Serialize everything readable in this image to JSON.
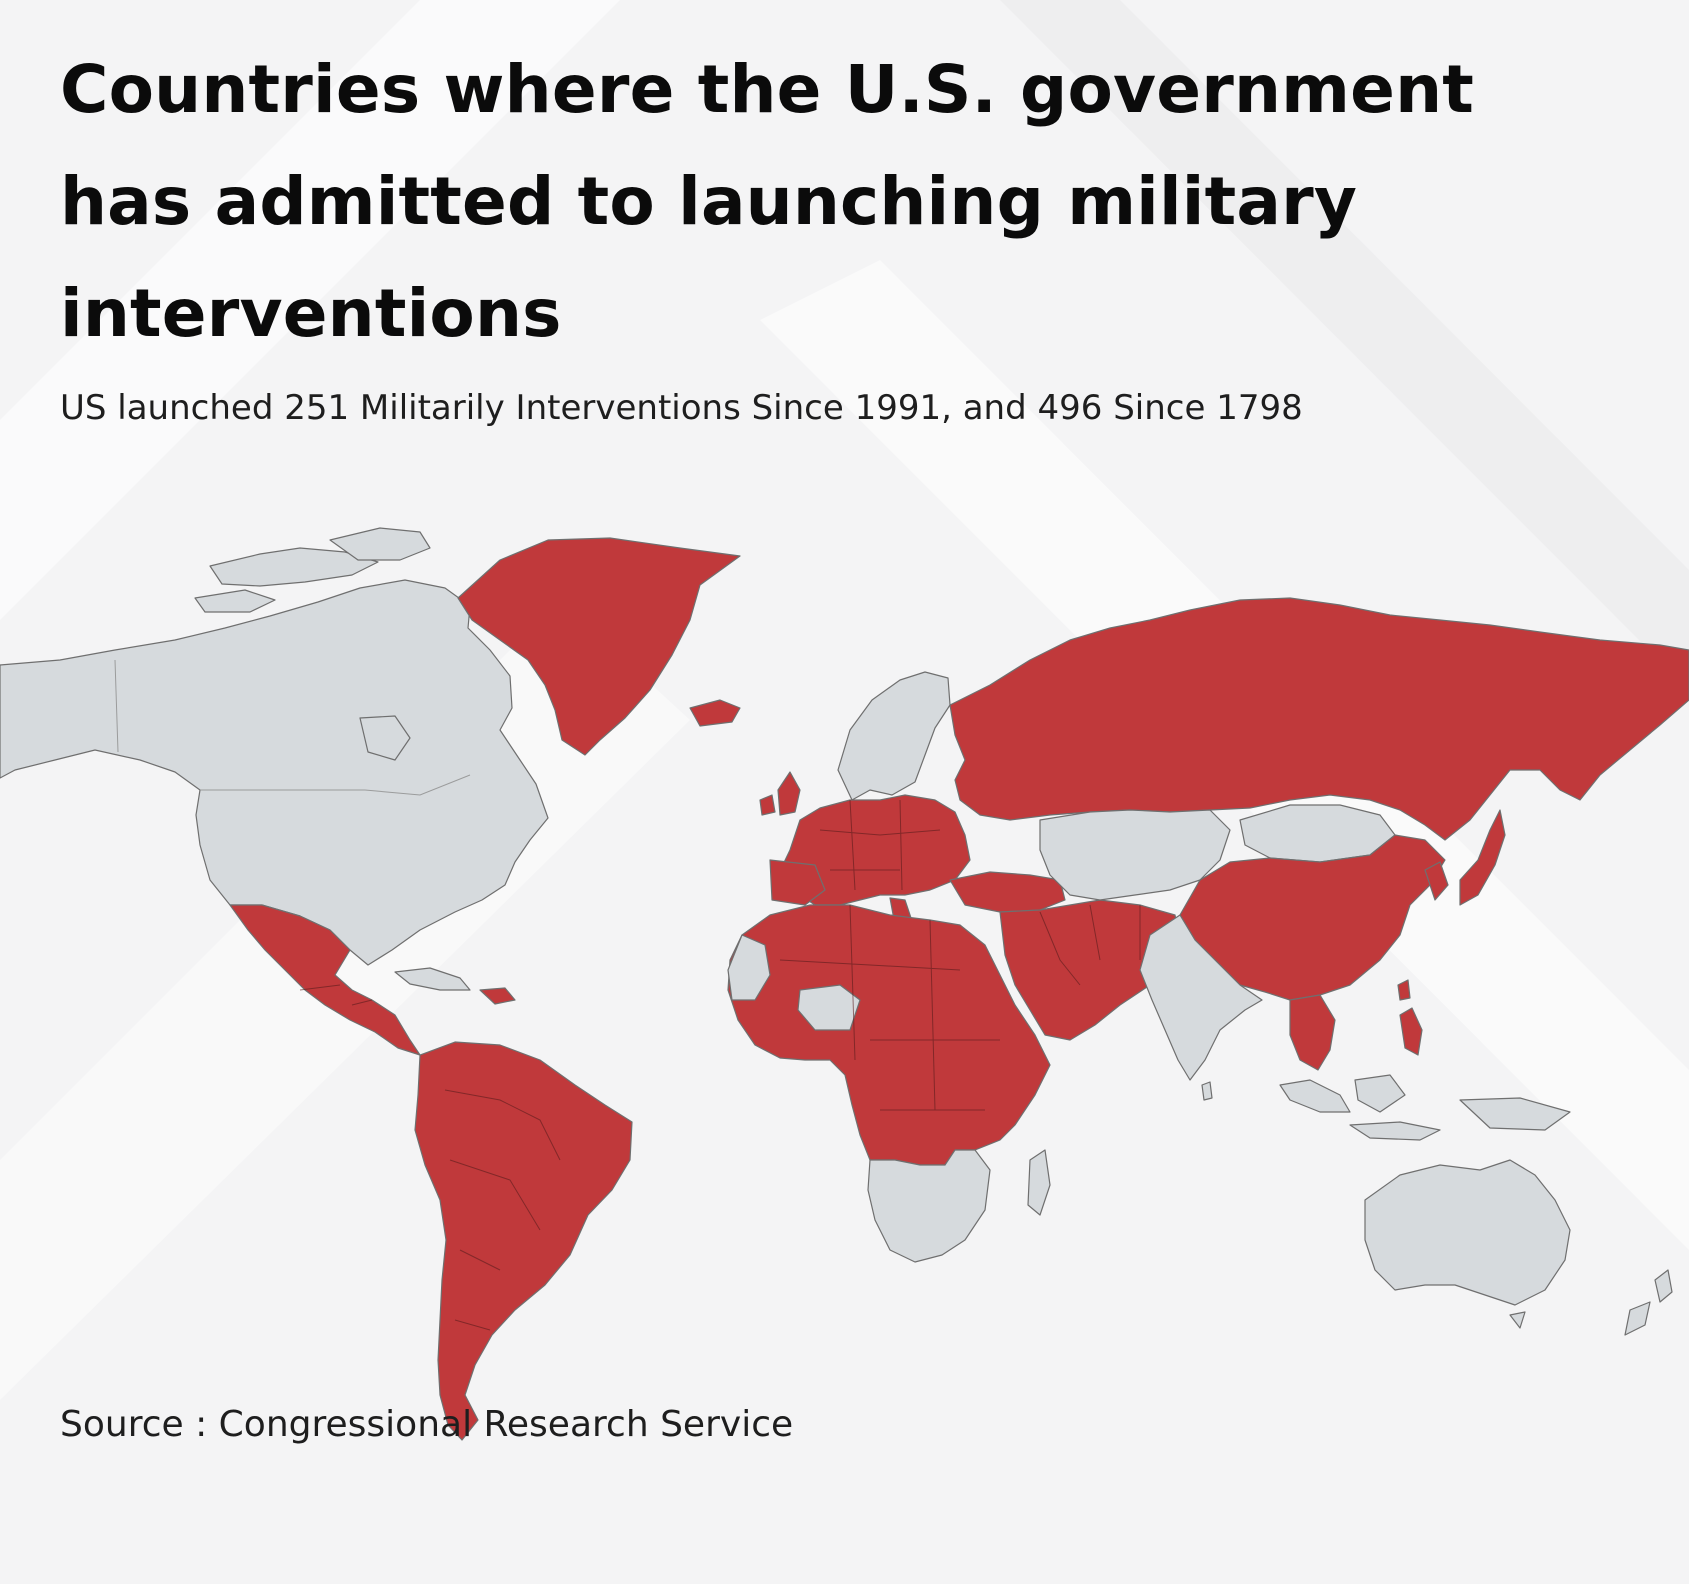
{
  "header": {
    "title": "Countries where the U.S. government has admitted to launching military interventions",
    "subtitle": "US launched 251 Militarily Interventions Since 1991, and 496 Since 1798"
  },
  "footer": {
    "source": "Source : Congressional Research Service"
  },
  "legend_colors": {
    "intervention": "#c0393b",
    "no_intervention": "#d6dadd",
    "background": "#f4f4f5"
  },
  "map": {
    "projection": "world",
    "highlighted_regions": [
      "Greenland",
      "Iceland",
      "United Kingdom",
      "Ireland",
      "Western Europe",
      "Eastern Europe",
      "Russia",
      "China",
      "Korea",
      "Japan",
      "Taiwan",
      "Philippines",
      "Southeast Asia",
      "Middle East",
      "Turkey",
      "Iran",
      "Afghanistan",
      "Pakistan",
      "Arabian Peninsula",
      "North Africa",
      "Central Africa",
      "East Africa",
      "West Africa coast",
      "Mexico",
      "Central America",
      "Caribbean",
      "South America"
    ],
    "grey_regions": [
      "Canada",
      "United States",
      "Alaska",
      "Scandinavia",
      "Kazakhstan",
      "Central Asia",
      "Mongolia",
      "India",
      "Indonesia",
      "Australia",
      "New Zealand",
      "Southern Africa",
      "Madagascar",
      "Western Sahara",
      "Cuba"
    ]
  }
}
